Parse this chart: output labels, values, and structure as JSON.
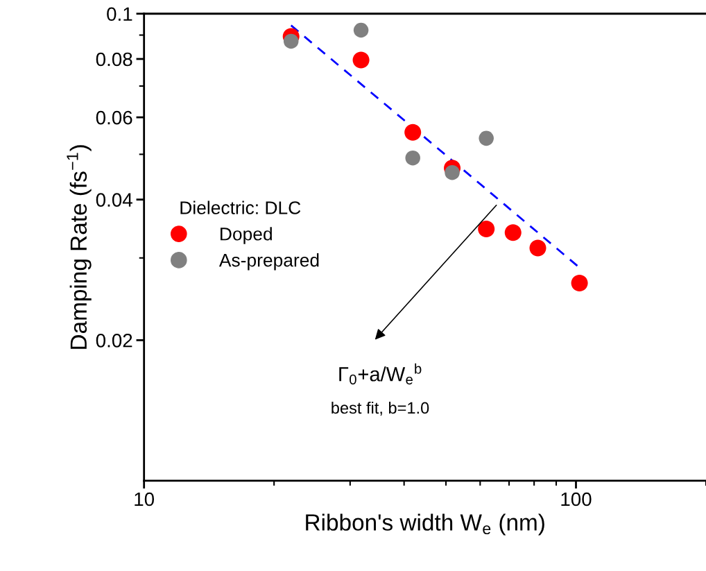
{
  "chart_data": {
    "type": "scatter",
    "xlabel": "Ribbon's width W$_{e}$ (nm)",
    "ylabel": "Damping Rate (fs$^{−1}$)",
    "log": "xy",
    "xlim": [
      10,
      200
    ],
    "ylim": [
      0.01,
      0.1
    ],
    "xticks": [
      10,
      100
    ],
    "yticks": [
      0.02,
      0.04,
      0.06,
      0.08,
      0.1
    ],
    "legend": "center left",
    "legend_title": "Dielectric: DLC",
    "marker": "circle",
    "grid": false,
    "series": [
      {
        "type": "line",
        "color": "#0000ff",
        "line_style": "dashed",
        "marker": "none",
        "x": [
          21.9,
          51.7,
          101.9
        ],
        "values": [
          0.0944,
          0.0485,
          0.0286
        ]
      },
      {
        "name": "Doped",
        "color": "#ff0000",
        "x": [
          21.9,
          31.8,
          41.9,
          51.7,
          62,
          71.5,
          81.6,
          101.9
        ],
        "values": [
          0.0894,
          0.0796,
          0.0557,
          0.0467,
          0.0346,
          0.034,
          0.0315,
          0.0265
        ]
      },
      {
        "name": "As-prepared",
        "color": "#808080",
        "x": [
          21.9,
          31.8,
          41.9,
          51.7,
          62
        ],
        "values": [
          0.0873,
          0.0922,
          0.0491,
          0.0457,
          0.0541
        ]
      }
    ],
    "annotations": [
      "Γ$_{0}$+a/W$_{e}$$^{b}$",
      "best fit, b=1.0"
    ]
  }
}
